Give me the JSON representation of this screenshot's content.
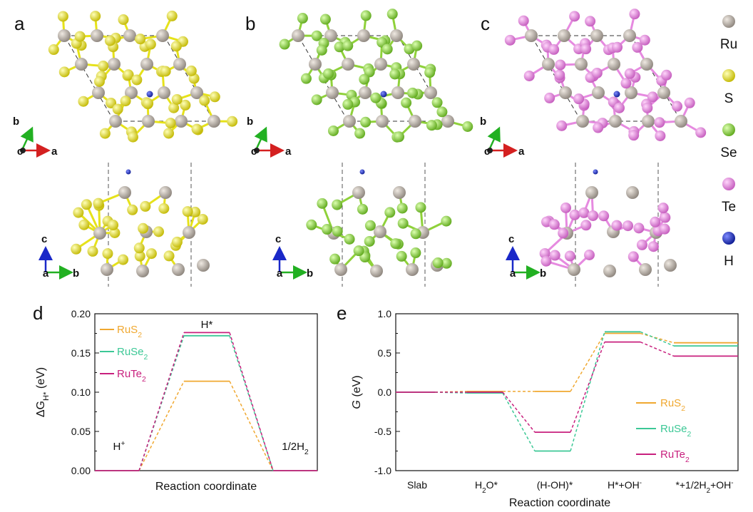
{
  "panel_labels": [
    "a",
    "b",
    "c",
    "d",
    "e"
  ],
  "elements_legend": [
    {
      "symbol": "Ru",
      "color": "#b5aca2"
    },
    {
      "symbol": "S",
      "color": "#e6e21a"
    },
    {
      "symbol": "Se",
      "color": "#8fd13a"
    },
    {
      "symbol": "Te",
      "color": "#e68ae0"
    },
    {
      "symbol": "H",
      "color": "#1a2ec8"
    }
  ],
  "structures": [
    {
      "panel": "a",
      "x_atom_color": "#e6e21a",
      "bond_color": "#e6e21a"
    },
    {
      "panel": "b",
      "x_atom_color": "#8fd13a",
      "bond_color": "#8fd13a"
    },
    {
      "panel": "c",
      "x_atom_color": "#e68ae0",
      "bond_color": "#e68ae0"
    }
  ],
  "axis_indicators": {
    "top": {
      "vertical": "b",
      "origin": "c",
      "horizontal": "a"
    },
    "bottom": {
      "vertical": "c",
      "origin": "a",
      "horizontal": "b"
    }
  },
  "colors": {
    "RuS2": "#f0a830",
    "RuSe2": "#3cc896",
    "RuTe2": "#c8207e"
  },
  "chart_data": [
    {
      "panel": "d",
      "type": "line",
      "xlabel": "Reaction coordinate",
      "ylabel": "ΔG",
      "ylabel_sub": "H*",
      "ylabel_unit": "(eV)",
      "ylim": [
        0,
        0.2
      ],
      "yticks": [
        "0.00",
        "0.05",
        "0.10",
        "0.15",
        "0.20"
      ],
      "states": [
        {
          "base": "H",
          "sup": "+"
        },
        {
          "base": "H*",
          "sup": ""
        },
        {
          "base": "1/2H",
          "sub": "2"
        }
      ],
      "series": [
        {
          "name": "RuS",
          "sub": "2",
          "color": "#f0a830",
          "values": [
            0.0,
            0.114,
            0.0
          ]
        },
        {
          "name": "RuSe",
          "sub": "2",
          "color": "#3cc896",
          "values": [
            0.0,
            0.172,
            0.0
          ]
        },
        {
          "name": "RuTe",
          "sub": "2",
          "color": "#c8207e",
          "values": [
            0.0,
            0.176,
            0.0
          ]
        }
      ]
    },
    {
      "panel": "e",
      "type": "line",
      "xlabel": "Reaction coordinate",
      "ylabel": "G",
      "ylabel_unit": "(eV)",
      "ylim": [
        -1.0,
        1.0
      ],
      "yticks": [
        "-1.0",
        "-0.5",
        "0.0",
        "0.5",
        "1.0"
      ],
      "categories": [
        {
          "parts": [
            [
              "Slab",
              ""
            ]
          ]
        },
        {
          "parts": [
            [
              "H",
              ""
            ],
            [
              "2",
              "sub"
            ],
            [
              "O*",
              ""
            ]
          ]
        },
        {
          "parts": [
            [
              "(H-OH)*",
              ""
            ]
          ]
        },
        {
          "parts": [
            [
              "H*+OH",
              ""
            ],
            [
              "-",
              "sup"
            ]
          ]
        },
        {
          "parts": [
            [
              "*+1/2H",
              ""
            ],
            [
              "2",
              "sub"
            ],
            [
              "+OH",
              ""
            ],
            [
              "-",
              "sup"
            ]
          ]
        }
      ],
      "series": [
        {
          "name": "RuS",
          "sub": "2",
          "color": "#f0a830",
          "values": [
            0.0,
            0.01,
            0.01,
            0.75,
            0.63
          ]
        },
        {
          "name": "RuSe",
          "sub": "2",
          "color": "#3cc896",
          "values": [
            0.0,
            -0.01,
            -0.75,
            0.77,
            0.59
          ]
        },
        {
          "name": "RuTe",
          "sub": "2",
          "color": "#c8207e",
          "values": [
            0.0,
            0.0,
            -0.51,
            0.64,
            0.46
          ]
        }
      ]
    }
  ]
}
